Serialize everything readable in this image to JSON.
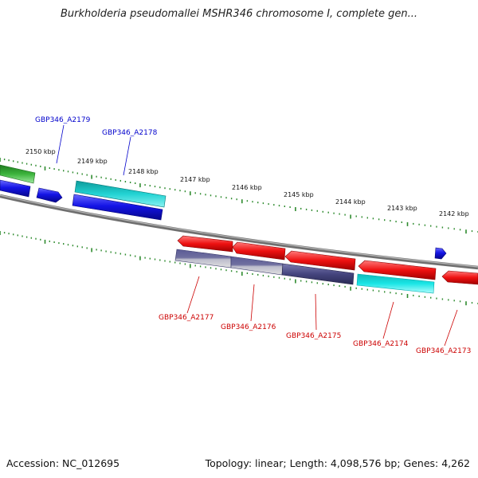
{
  "title": "Burkholderia pseudomallei MSHR346 chromosome I, complete gen...",
  "footer": {
    "accession": "Accession: NC_012695",
    "summary": "Topology: linear; Length: 4,098,576 bp; Genes: 4,262"
  },
  "colors": {
    "backbone": "#8a8a8a",
    "tick": "#2e8b2e",
    "forward_gene_label": "#0000cc",
    "reverse_gene_label": "#cc0000",
    "green_gene": "#3cb43c",
    "blue_gene": "#1414e6",
    "cyan_gene": "#22d3d3",
    "red_gene": "#ee1111",
    "navy_gene": "#45457e"
  },
  "kbp_labels": [
    "2150 kbp",
    "2149 kbp",
    "2148 kbp",
    "2147 kbp",
    "2146 kbp",
    "2145 kbp",
    "2144 kbp",
    "2143 kbp",
    "2142 kbp"
  ],
  "forward_labels": [
    "GBP346_A2179",
    "GBP346_A2178"
  ],
  "reverse_labels": [
    "GBP346_A2177",
    "GBP346_A2176",
    "GBP346_A2175",
    "GBP346_A2174",
    "GBP346_A2173"
  ]
}
